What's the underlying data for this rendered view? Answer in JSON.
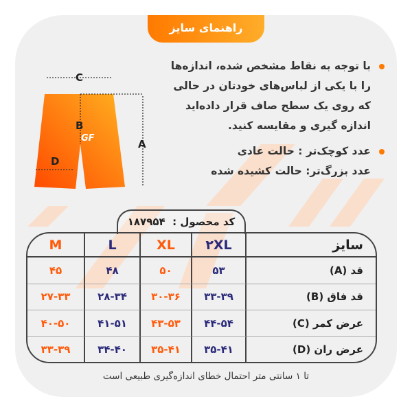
{
  "header": {
    "title": "راهنمای سایز"
  },
  "notes": [
    "با توجه به نقاط مشخص شده، اندازه‌ها را با یکی از لباس‌های خودتان در حالی که روی یک سطح صاف قرار داده‌اید اندازه گیری و مقایسه کنید.",
    "عدد کوچک‌تر : حالت عادی\nعدد بزرگ‌تر: حالت کشیده شده"
  ],
  "notes_lines": {
    "small": "عدد کوچک‌تر : حالت عادی",
    "large": "عدد بزرگ‌تر: حالت کشیده شده"
  },
  "diagram": {
    "labels": {
      "a": "A",
      "b": "B",
      "c": "C",
      "d": "D"
    }
  },
  "product_code": {
    "label": "کد محصول :",
    "value": "۱۸۷۹۵۴"
  },
  "table": {
    "header": {
      "label": "سایز",
      "sizes": [
        "M",
        "L",
        "XL",
        "۲XL"
      ]
    },
    "rows": [
      {
        "label": "قد (A)",
        "values": [
          "۴۵",
          "۴۸",
          "۵۰",
          "۵۳"
        ]
      },
      {
        "label": "قد فاق (B)",
        "values": [
          "۲۷-۳۳",
          "۲۸-۳۴",
          "۳۰-۳۶",
          "۳۳-۳۹"
        ]
      },
      {
        "label": "عرض کمر (C)",
        "values": [
          "۴۰-۵۰",
          "۴۱-۵۱",
          "۴۳-۵۳",
          "۴۴-۵۴"
        ]
      },
      {
        "label": "عرض ران (D)",
        "values": [
          "۳۳-۳۹",
          "۳۴-۴۰",
          "۳۵-۴۱",
          "۳۵-۴۱"
        ]
      }
    ]
  },
  "footer": "تا ۱ سانتی متر احتمال خطای اندازه‌گیری طبیعی است",
  "colors": {
    "accent": "#ff7a00",
    "orange_text": "#ff5a0a",
    "navy_text": "#2b2a7a",
    "card": "#f0f0f0"
  }
}
